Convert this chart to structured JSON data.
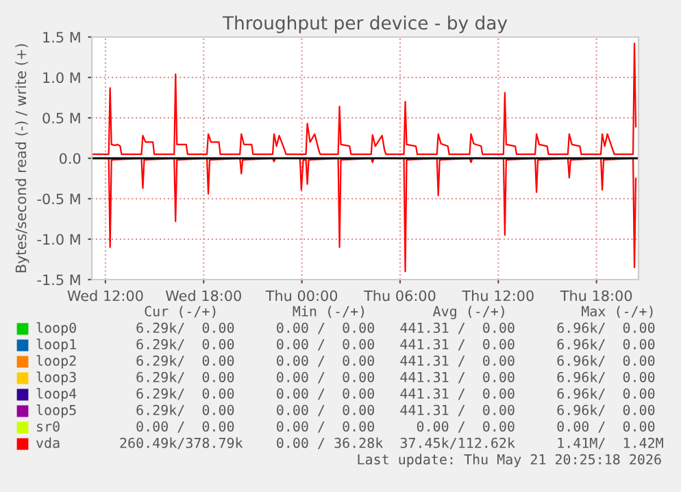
{
  "chart_data": {
    "type": "line",
    "title": "Throughput per device - by day",
    "ylabel": "Bytes/second read (-) / write (+)",
    "xlim": [
      "2026-05-20T11:10",
      "2026-05-21T20:34"
    ],
    "xticks": [
      {
        "value": "2026-05-20T12:00",
        "label": "Wed 12:00"
      },
      {
        "value": "2026-05-20T18:00",
        "label": "Wed 18:00"
      },
      {
        "value": "2026-05-21T00:00",
        "label": "Thu 00:00"
      },
      {
        "value": "2026-05-21T06:00",
        "label": "Thu 06:00"
      },
      {
        "value": "2026-05-21T12:00",
        "label": "Thu 12:00"
      },
      {
        "value": "2026-05-21T18:00",
        "label": "Thu 18:00"
      }
    ],
    "ylim": [
      -1.5,
      1.5
    ],
    "yticks": [
      {
        "value": -1.5,
        "label": "-1.5 M"
      },
      {
        "value": -1.0,
        "label": "-1.0 M"
      },
      {
        "value": -0.5,
        "label": "-0.5 M"
      },
      {
        "value": 0.0,
        "label": "0.0"
      },
      {
        "value": 0.5,
        "label": "0.5 M"
      },
      {
        "value": 1.0,
        "label": "1.0 M"
      },
      {
        "value": 1.5,
        "label": "1.5 M"
      }
    ],
    "grid": true,
    "legend": "bottom",
    "marker": "none",
    "line_style": "solid",
    "series": [
      {
        "name": "loop0",
        "color": "#00cc00"
      },
      {
        "name": "loop1",
        "color": "#0066b3"
      },
      {
        "name": "loop2",
        "color": "#ff8000"
      },
      {
        "name": "loop3",
        "color": "#ffcc00"
      },
      {
        "name": "loop4",
        "color": "#330099"
      },
      {
        "name": "loop5",
        "color": "#990099"
      },
      {
        "name": "sr0",
        "color": "#ccff00"
      },
      {
        "name": "vda",
        "color": "#ff0000",
        "x": [
          "2026-05-20T11:10",
          "2026-05-20T12:12",
          "2026-05-20T12:17",
          "2026-05-20T12:22",
          "2026-05-20T12:35",
          "2026-05-20T12:45",
          "2026-05-20T12:54",
          "2026-05-20T12:59",
          "2026-05-20T14:12",
          "2026-05-20T14:17",
          "2026-05-20T14:27",
          "2026-05-20T14:54",
          "2026-05-20T14:59",
          "2026-05-20T16:12",
          "2026-05-20T16:17",
          "2026-05-20T16:22",
          "2026-05-20T16:56",
          "2026-05-20T17:01",
          "2026-05-20T18:12",
          "2026-05-20T18:17",
          "2026-05-20T18:27",
          "2026-05-20T18:56",
          "2026-05-20T19:01",
          "2026-05-20T20:13",
          "2026-05-20T20:18",
          "2026-05-20T20:28",
          "2026-05-20T20:56",
          "2026-05-20T21:01",
          "2026-05-20T22:13",
          "2026-05-20T22:18",
          "2026-05-20T22:27",
          "2026-05-20T22:37",
          "2026-05-20T22:57",
          "2026-05-20T23:02",
          "2026-05-21T00:15",
          "2026-05-21T00:20",
          "2026-05-21T00:30",
          "2026-05-21T00:47",
          "2026-05-21T01:02",
          "2026-05-21T01:07",
          "2026-05-21T02:13",
          "2026-05-21T02:18",
          "2026-05-21T02:23",
          "2026-05-21T02:55",
          "2026-05-21T03:00",
          "2026-05-21T04:14",
          "2026-05-21T04:19",
          "2026-05-21T04:29",
          "2026-05-21T04:54",
          "2026-05-21T05:03",
          "2026-05-21T05:08",
          "2026-05-21T06:14",
          "2026-05-21T06:19",
          "2026-05-21T06:24",
          "2026-05-21T06:58",
          "2026-05-21T07:03",
          "2026-05-21T08:15",
          "2026-05-21T08:20",
          "2026-05-21T08:30",
          "2026-05-21T08:55",
          "2026-05-21T09:00",
          "2026-05-21T10:15",
          "2026-05-21T10:20",
          "2026-05-21T10:30",
          "2026-05-21T10:57",
          "2026-05-21T11:02",
          "2026-05-21T12:19",
          "2026-05-21T12:24",
          "2026-05-21T12:29",
          "2026-05-21T13:02",
          "2026-05-21T13:07",
          "2026-05-21T14:15",
          "2026-05-21T14:20",
          "2026-05-21T14:30",
          "2026-05-21T14:59",
          "2026-05-21T15:04",
          "2026-05-21T16:15",
          "2026-05-21T16:20",
          "2026-05-21T16:30",
          "2026-05-21T16:59",
          "2026-05-21T17:04",
          "2026-05-21T18:16",
          "2026-05-21T18:21",
          "2026-05-21T18:30",
          "2026-05-21T18:40",
          "2026-05-21T19:00",
          "2026-05-21T19:05",
          "2026-05-21T20:14",
          "2026-05-21T20:19",
          "2026-05-21T20:24"
        ],
        "values": [
          0.05,
          0.05,
          0.87,
          0.17,
          0.16,
          0.17,
          0.15,
          0.05,
          0.05,
          0.28,
          0.2,
          0.2,
          0.05,
          0.05,
          1.04,
          0.17,
          0.17,
          0.05,
          0.05,
          0.3,
          0.2,
          0.2,
          0.05,
          0.05,
          0.3,
          0.17,
          0.17,
          0.05,
          0.05,
          0.3,
          0.15,
          0.28,
          0.1,
          0.05,
          0.05,
          0.43,
          0.2,
          0.3,
          0.1,
          0.05,
          0.05,
          0.64,
          0.17,
          0.15,
          0.05,
          0.05,
          0.29,
          0.15,
          0.28,
          0.1,
          0.05,
          0.05,
          0.7,
          0.17,
          0.15,
          0.05,
          0.05,
          0.3,
          0.18,
          0.15,
          0.05,
          0.05,
          0.3,
          0.18,
          0.15,
          0.05,
          0.05,
          0.81,
          0.17,
          0.15,
          0.05,
          0.05,
          0.3,
          0.17,
          0.15,
          0.05,
          0.05,
          0.3,
          0.17,
          0.15,
          0.05,
          0.05,
          0.3,
          0.15,
          0.3,
          0.1,
          0.05,
          0.05,
          1.42,
          0.39
        ]
      },
      {
        "color": "#ff0000",
        "x": [
          "2026-05-20T11:10",
          "2026-05-20T12:12",
          "2026-05-20T12:17",
          "2026-05-20T12:22",
          "2026-05-20T14:12",
          "2026-05-20T14:17",
          "2026-05-20T14:22",
          "2026-05-20T16:12",
          "2026-05-20T16:17",
          "2026-05-20T16:22",
          "2026-05-20T18:12",
          "2026-05-20T18:17",
          "2026-05-20T18:22",
          "2026-05-20T20:13",
          "2026-05-20T20:18",
          "2026-05-20T20:23",
          "2026-05-20T22:13",
          "2026-05-20T22:18",
          "2026-05-20T22:23",
          "2026-05-20T23:53",
          "2026-05-20T23:58",
          "2026-05-21T00:05",
          "2026-05-21T00:15",
          "2026-05-21T00:20",
          "2026-05-21T00:25",
          "2026-05-21T02:13",
          "2026-05-21T02:18",
          "2026-05-21T02:23",
          "2026-05-21T04:14",
          "2026-05-21T04:19",
          "2026-05-21T04:24",
          "2026-05-21T06:14",
          "2026-05-21T06:19",
          "2026-05-21T06:24",
          "2026-05-21T08:15",
          "2026-05-21T08:20",
          "2026-05-21T08:25",
          "2026-05-21T10:15",
          "2026-05-21T10:20",
          "2026-05-21T10:25",
          "2026-05-21T12:19",
          "2026-05-21T12:24",
          "2026-05-21T12:29",
          "2026-05-21T14:15",
          "2026-05-21T14:20",
          "2026-05-21T14:25",
          "2026-05-21T16:15",
          "2026-05-21T16:20",
          "2026-05-21T16:25",
          "2026-05-21T18:16",
          "2026-05-21T18:21",
          "2026-05-21T18:26",
          "2026-05-21T20:14",
          "2026-05-21T20:19",
          "2026-05-21T20:24"
        ],
        "values": [
          0,
          0,
          -1.1,
          -0.02,
          0,
          -0.37,
          -0.02,
          0,
          -0.78,
          -0.02,
          0,
          -0.44,
          -0.02,
          0,
          -0.19,
          -0.02,
          0,
          -0.04,
          0,
          0,
          -0.39,
          -0.02,
          -0.02,
          -0.32,
          -0.02,
          0,
          -1.1,
          -0.02,
          0,
          -0.05,
          0,
          0,
          -1.4,
          -0.02,
          0,
          -0.46,
          -0.02,
          0,
          -0.05,
          0,
          0,
          -0.95,
          -0.02,
          0,
          -0.42,
          -0.02,
          0,
          -0.24,
          -0.02,
          0,
          -0.39,
          -0.02,
          0,
          -1.35,
          -0.25
        ]
      }
    ],
    "annotations": [
      "   Cur (-/+)         Min (-/+)        Avg (-/+)         Max (-/+)",
      "  6.29k/  0.00     0.00 /  0.00   441.31 /  0.00     6.96k/  0.00",
      "  6.29k/  0.00     0.00 /  0.00   441.31 /  0.00     6.96k/  0.00",
      "  6.29k/  0.00     0.00 /  0.00   441.31 /  0.00     6.96k/  0.00",
      "  6.29k/  0.00     0.00 /  0.00   441.31 /  0.00     6.96k/  0.00",
      "  6.29k/  0.00     0.00 /  0.00   441.31 /  0.00     6.96k/  0.00",
      "  6.29k/  0.00     0.00 /  0.00   441.31 /  0.00     6.96k/  0.00",
      "  0.00 /  0.00     0.00 /  0.00     0.00 /  0.00     0.00 /  0.00",
      "260.49k/378.79k    0.00 / 36.28k  37.45k/112.62k     1.41M/  1.42M",
      "Last update: Thu May 21 20:25:18 2026"
    ]
  }
}
